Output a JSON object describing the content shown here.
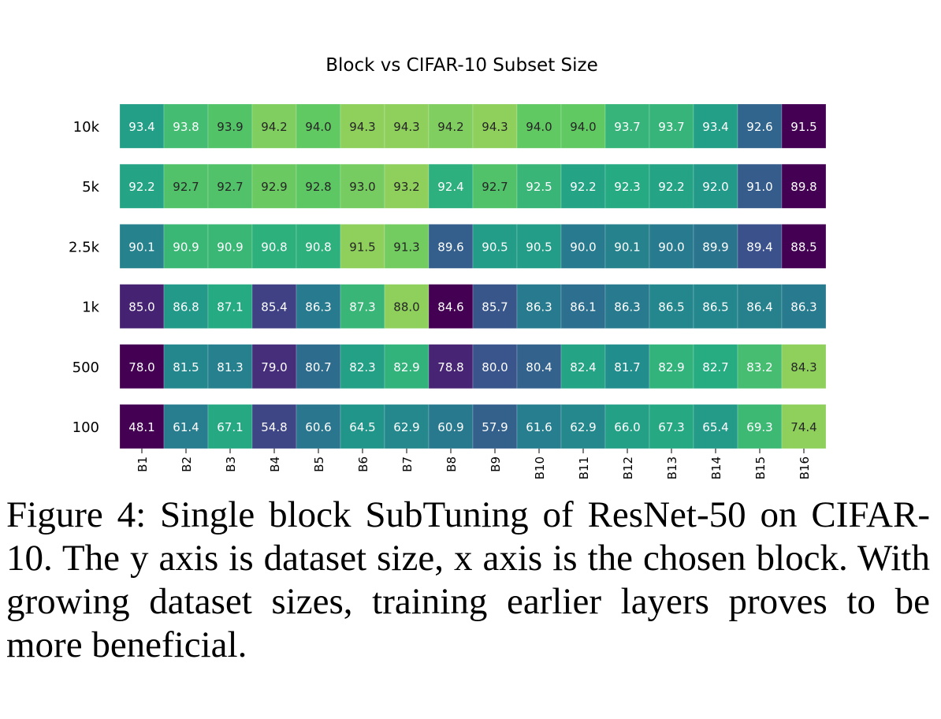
{
  "chart_data": {
    "type": "heatmap",
    "title": "Block vs CIFAR-10 Subset Size",
    "xlabel": "",
    "ylabel": "",
    "x_categories": [
      "B1",
      "B2",
      "B3",
      "B4",
      "B5",
      "B6",
      "B7",
      "B8",
      "B9",
      "B10",
      "B11",
      "B12",
      "B13",
      "B14",
      "B15",
      "B16"
    ],
    "y_categories": [
      "10k",
      "5k",
      "2.5k",
      "1k",
      "500",
      "100"
    ],
    "values": [
      [
        93.4,
        93.8,
        93.9,
        94.2,
        94.0,
        94.3,
        94.3,
        94.2,
        94.3,
        94.0,
        94.0,
        93.7,
        93.7,
        93.4,
        92.6,
        91.5
      ],
      [
        92.2,
        92.7,
        92.7,
        92.9,
        92.8,
        93.0,
        93.2,
        92.4,
        92.7,
        92.5,
        92.2,
        92.3,
        92.2,
        92.0,
        91.0,
        89.8
      ],
      [
        90.1,
        90.9,
        90.9,
        90.8,
        90.8,
        91.5,
        91.3,
        89.6,
        90.5,
        90.5,
        90.0,
        90.1,
        90.0,
        89.9,
        89.4,
        88.5
      ],
      [
        85.0,
        86.8,
        87.1,
        85.4,
        86.3,
        87.3,
        88.0,
        84.6,
        85.7,
        86.3,
        86.1,
        86.3,
        86.5,
        86.5,
        86.4,
        86.3
      ],
      [
        78.0,
        81.5,
        81.3,
        79.0,
        80.7,
        82.3,
        82.9,
        78.8,
        80.0,
        80.4,
        82.4,
        81.7,
        82.9,
        82.7,
        83.2,
        84.3
      ],
      [
        48.1,
        61.4,
        67.1,
        54.8,
        60.6,
        64.5,
        62.9,
        60.9,
        57.9,
        61.6,
        62.9,
        66.0,
        67.3,
        65.4,
        69.3,
        74.4
      ]
    ],
    "colormap": "viridis (row-normalized)",
    "colors": {
      "low": "#440154",
      "mid": "#21918c",
      "high": "#8fd05d"
    },
    "grid": false,
    "legend": "none"
  },
  "caption": "Figure 4:  Single block SubTuning of ResNet-50 on CIFAR-10. The y axis is dataset size, x axis is the chosen block. With growing dataset sizes, training earlier layers proves to be more beneficial."
}
